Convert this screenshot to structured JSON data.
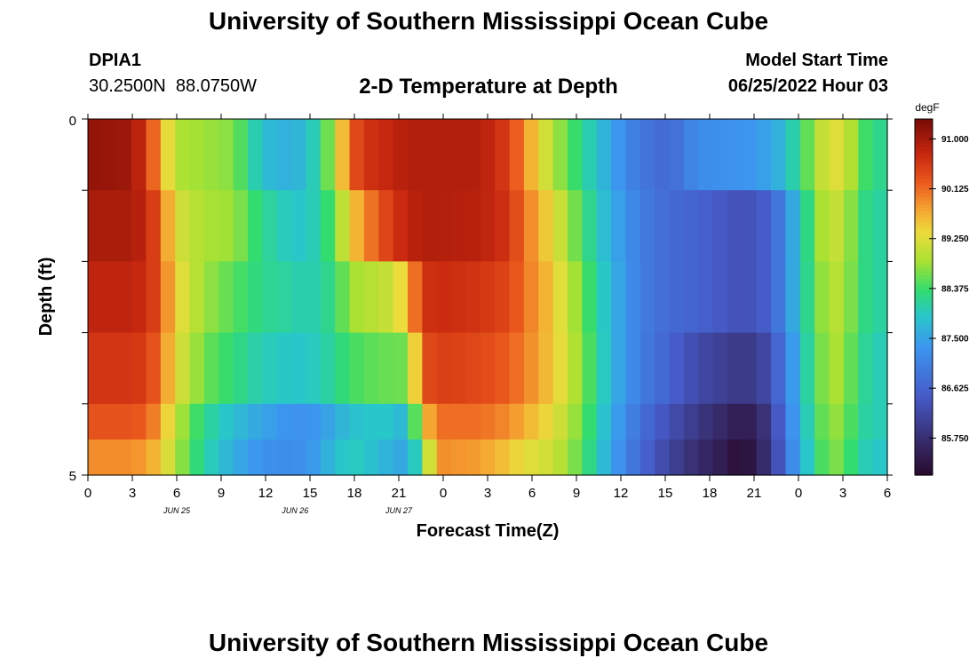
{
  "header": {
    "title": "University of Southern Mississippi Ocean Cube",
    "station_id": "DPIA1",
    "station_coords": "30.2500N  88.0750W",
    "subtitle": "2-D Temperature at Depth",
    "model_label": "Model Start Time",
    "model_time": "06/25/2022 Hour 03"
  },
  "footer": {
    "title": "University of Southern Mississippi Ocean Cube"
  },
  "chart_data": {
    "type": "heatmap",
    "xlabel": "Forecast Time(Z)",
    "ylabel": "Depth (ft)",
    "x_ticks": [
      "0",
      "3",
      "6",
      "9",
      "12",
      "15",
      "18",
      "21",
      "0",
      "3",
      "6",
      "9",
      "12",
      "15",
      "18",
      "21",
      "0",
      "3",
      "6"
    ],
    "date_labels": [
      {
        "label": "JUN 25",
        "at_tick": 6
      },
      {
        "label": "JUN 26",
        "at_tick": 14
      },
      {
        "label": "JUN 27",
        "at_tick": 21
      }
    ],
    "y_tick_labels": [
      "0",
      "5"
    ],
    "y_range": [
      0,
      5
    ],
    "colorbar": {
      "unit": "degF",
      "ticks": [
        "91.000",
        "90.125",
        "89.250",
        "88.375",
        "87.500",
        "86.625",
        "85.750"
      ],
      "range": [
        85.1,
        91.35
      ]
    },
    "depth_rows": [
      0,
      1,
      2,
      3,
      4,
      4.5
    ],
    "time_hours_start": 0,
    "time_hours_step": 1,
    "keyframes": [
      {
        "h": 0,
        "v": [
          91.15,
          90.95,
          90.8,
          90.6,
          90.3,
          89.9
        ]
      },
      {
        "h": 3,
        "v": [
          91.05,
          90.95,
          90.8,
          90.6,
          90.3,
          89.9
        ]
      },
      {
        "h": 4,
        "v": [
          90.6,
          90.8,
          90.7,
          90.5,
          90.2,
          89.8
        ]
      },
      {
        "h": 5,
        "v": [
          89.7,
          90.2,
          90.3,
          90.1,
          89.8,
          89.5
        ]
      },
      {
        "h": 6,
        "v": [
          88.9,
          89.2,
          89.4,
          89.3,
          89.0,
          88.9
        ]
      },
      {
        "h": 8,
        "v": [
          88.8,
          88.85,
          88.8,
          88.6,
          88.2,
          88.1
        ]
      },
      {
        "h": 10,
        "v": [
          88.7,
          88.8,
          88.5,
          88.3,
          87.8,
          87.6
        ]
      },
      {
        "h": 12,
        "v": [
          87.8,
          88.2,
          88.2,
          88.0,
          87.5,
          87.3
        ]
      },
      {
        "h": 14,
        "v": [
          87.6,
          87.9,
          88.1,
          87.9,
          87.3,
          87.2
        ]
      },
      {
        "h": 15,
        "v": [
          87.8,
          87.9,
          88.0,
          87.9,
          87.3,
          87.3
        ]
      },
      {
        "h": 16,
        "v": [
          88.2,
          88.1,
          88.1,
          88.0,
          87.4,
          87.5
        ]
      },
      {
        "h": 17,
        "v": [
          89.0,
          88.6,
          88.3,
          88.2,
          87.6,
          87.8
        ]
      },
      {
        "h": 18,
        "v": [
          90.2,
          89.4,
          88.8,
          88.4,
          87.8,
          88.0
        ]
      },
      {
        "h": 19,
        "v": [
          90.6,
          89.9,
          88.9,
          88.5,
          87.9,
          87.9
        ]
      },
      {
        "h": 21,
        "v": [
          90.8,
          90.6,
          89.1,
          88.6,
          87.9,
          87.6
        ]
      },
      {
        "h": 22,
        "v": [
          90.9,
          90.8,
          89.6,
          88.6,
          87.6,
          87.5
        ]
      },
      {
        "h": 23,
        "v": [
          90.9,
          90.9,
          90.6,
          90.3,
          89.4,
          88.4
        ]
      },
      {
        "h": 24,
        "v": [
          90.9,
          90.9,
          90.7,
          90.5,
          90.1,
          89.9
        ]
      },
      {
        "h": 27,
        "v": [
          90.9,
          90.85,
          90.6,
          90.4,
          90.1,
          89.8
        ]
      },
      {
        "h": 29,
        "v": [
          90.5,
          90.6,
          90.4,
          90.2,
          89.9,
          89.5
        ]
      },
      {
        "h": 30,
        "v": [
          89.9,
          90.1,
          90.1,
          90.0,
          89.7,
          89.3
        ]
      },
      {
        "h": 32,
        "v": [
          88.9,
          89.3,
          89.5,
          89.5,
          89.3,
          89.1
        ]
      },
      {
        "h": 34,
        "v": [
          88.2,
          88.4,
          88.6,
          88.7,
          88.6,
          88.5
        ]
      },
      {
        "h": 36,
        "v": [
          87.5,
          87.6,
          87.7,
          87.7,
          87.6,
          87.5
        ]
      },
      {
        "h": 38,
        "v": [
          86.9,
          87.0,
          87.0,
          87.0,
          86.8,
          86.7
        ]
      },
      {
        "h": 40,
        "v": [
          86.7,
          86.7,
          86.7,
          86.6,
          86.3,
          86.1
        ]
      },
      {
        "h": 42,
        "v": [
          87.2,
          86.6,
          86.6,
          86.2,
          85.9,
          85.7
        ]
      },
      {
        "h": 44,
        "v": [
          87.3,
          86.4,
          86.4,
          86.0,
          85.6,
          85.4
        ]
      },
      {
        "h": 45,
        "v": [
          87.3,
          86.3,
          86.3,
          85.9,
          85.4,
          85.1
        ]
      },
      {
        "h": 46,
        "v": [
          87.4,
          86.4,
          86.4,
          86.0,
          85.6,
          85.5
        ]
      },
      {
        "h": 47,
        "v": [
          87.5,
          86.6,
          86.6,
          86.3,
          86.0,
          85.9
        ]
      },
      {
        "h": 48,
        "v": [
          87.8,
          87.2,
          87.2,
          87.0,
          86.9,
          86.8
        ]
      },
      {
        "h": 49,
        "v": [
          88.3,
          87.9,
          87.9,
          87.8,
          87.7,
          87.6
        ]
      },
      {
        "h": 50,
        "v": [
          88.8,
          88.6,
          88.5,
          88.4,
          88.3,
          88.2
        ]
      },
      {
        "h": 51,
        "v": [
          89.3,
          89.1,
          89.0,
          88.9,
          88.8,
          88.7
        ]
      },
      {
        "h": 52,
        "v": [
          89.2,
          89.0,
          88.9,
          88.8,
          88.7,
          88.6
        ]
      },
      {
        "h": 53,
        "v": [
          88.6,
          88.4,
          88.4,
          88.3,
          88.2,
          88.1
        ]
      },
      {
        "h": 54,
        "v": [
          88.2,
          88.1,
          88.1,
          88.0,
          88.0,
          87.9
        ]
      }
    ]
  }
}
